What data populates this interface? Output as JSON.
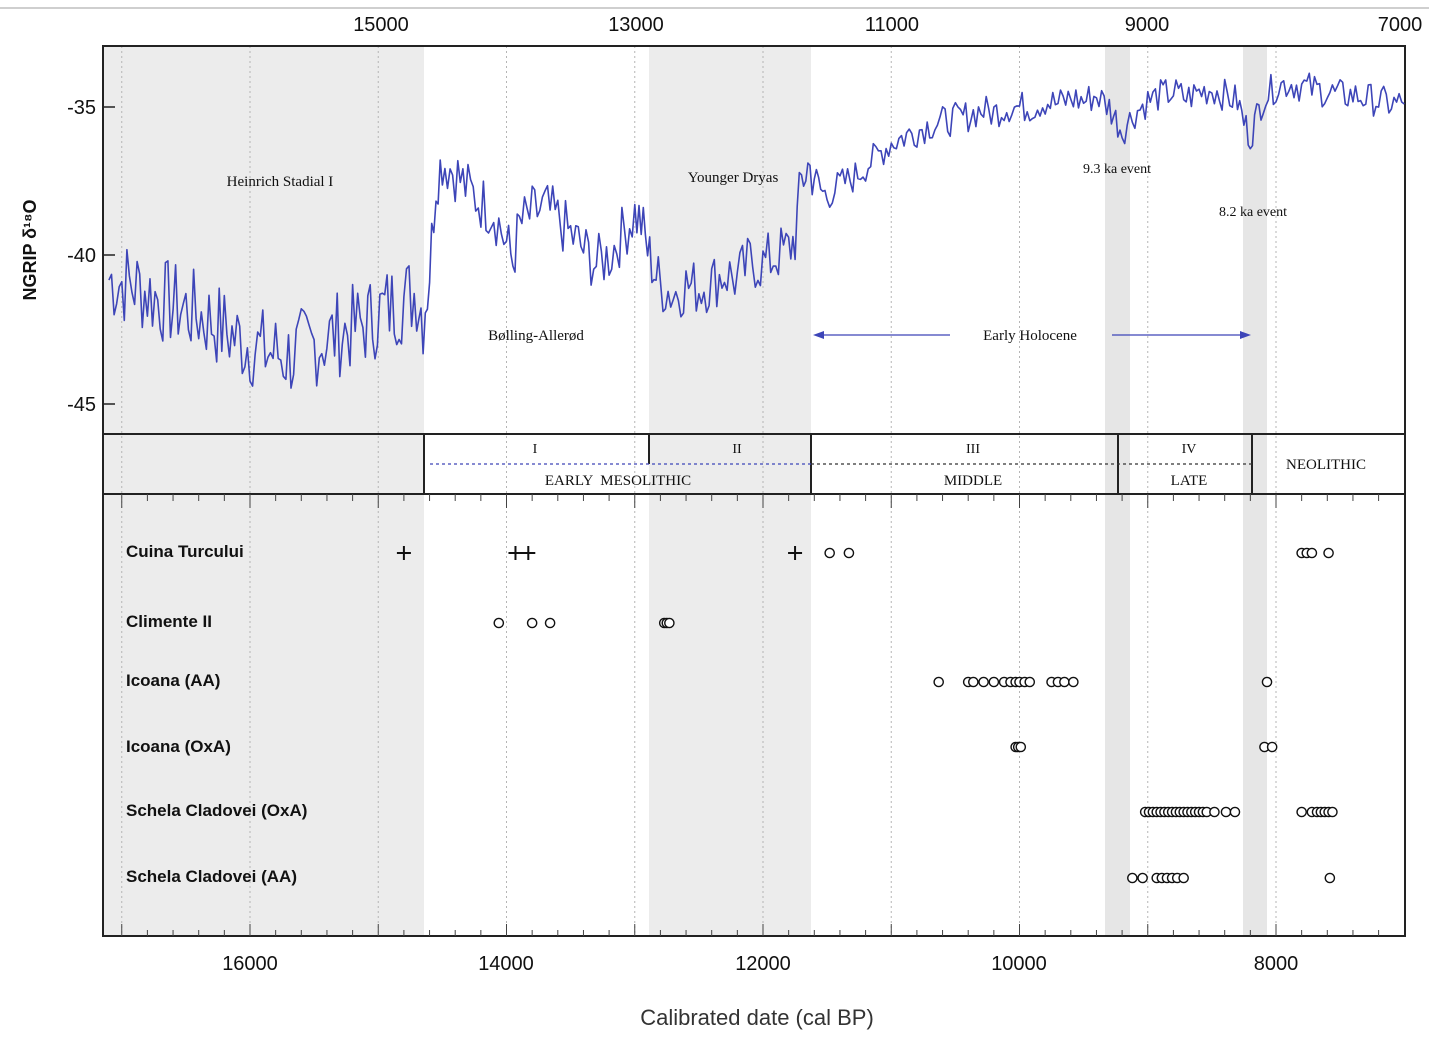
{
  "chart_data": [
    {
      "type": "line",
      "ylabel": "NGRIP δ¹⁸O",
      "y_ticks": [
        "-35",
        "-40",
        "-45"
      ],
      "ylim": [
        -46.5,
        -33.5
      ],
      "xlim": [
        17100,
        7000
      ],
      "x_reversed": true,
      "top_axis_ticks": [
        "15000",
        "13000",
        "11000",
        "9000",
        "7000"
      ],
      "series": [
        {
          "color": "#3d45b8",
          "x": [
            17100,
            16900,
            16700,
            16500,
            16300,
            16100,
            16000,
            15900,
            15700,
            15500,
            15300,
            15100,
            14950,
            14800,
            14700,
            14650,
            14600,
            14550,
            14500,
            14400,
            14300,
            14200,
            14100,
            14000,
            13950,
            13900,
            13800,
            13700,
            13600,
            13500,
            13400,
            13300,
            13200,
            13100,
            13000,
            12950,
            12900,
            12850,
            12800,
            12700,
            12600,
            12500,
            12400,
            12300,
            12200,
            12100,
            12000,
            11900,
            11800,
            11750,
            11700,
            11650,
            11600,
            11550,
            11500,
            11400,
            11300,
            11200,
            11100,
            11000,
            10900,
            10800,
            10700,
            10600,
            10500,
            10400,
            10300,
            10200,
            10100,
            10000,
            9900,
            9800,
            9700,
            9600,
            9500,
            9400,
            9300,
            9250,
            9200,
            9100,
            9000,
            8900,
            8800,
            8700,
            8600,
            8500,
            8400,
            8300,
            8250,
            8200,
            8150,
            8100,
            8000,
            7900,
            7800,
            7700,
            7600,
            7500,
            7400,
            7300,
            7200,
            7100,
            7000
          ],
          "y": [
            -40.8,
            -41.0,
            -41.5,
            -41.8,
            -42.2,
            -42.8,
            -43.0,
            -43.2,
            -43.4,
            -43.0,
            -42.6,
            -42.3,
            -41.8,
            -41.5,
            -41.2,
            -42.0,
            -40.5,
            -37.5,
            -36.8,
            -37.2,
            -37.8,
            -38.2,
            -38.5,
            -39.6,
            -40.2,
            -39.0,
            -38.6,
            -38.4,
            -38.8,
            -39.3,
            -39.8,
            -40.3,
            -40.0,
            -39.3,
            -38.6,
            -38.9,
            -39.8,
            -40.5,
            -41.0,
            -41.3,
            -41.0,
            -41.1,
            -40.9,
            -40.6,
            -40.8,
            -40.2,
            -40.3,
            -40.0,
            -39.8,
            -39.4,
            -37.5,
            -37.0,
            -37.3,
            -37.8,
            -38.0,
            -37.6,
            -37.4,
            -37.0,
            -36.6,
            -36.2,
            -36.0,
            -35.8,
            -35.6,
            -35.5,
            -35.4,
            -35.3,
            -35.1,
            -35.2,
            -35.0,
            -35.0,
            -35.0,
            -34.8,
            -34.9,
            -34.7,
            -34.8,
            -34.6,
            -35.0,
            -35.4,
            -35.8,
            -35.2,
            -34.8,
            -34.6,
            -34.5,
            -34.7,
            -34.5,
            -34.4,
            -34.6,
            -34.8,
            -35.5,
            -36.0,
            -35.3,
            -34.7,
            -34.3,
            -34.2,
            -34.3,
            -34.4,
            -34.5,
            -34.6,
            -34.6,
            -34.7,
            -34.8,
            -34.9,
            -34.9
          ]
        }
      ],
      "annotations": [
        "Heinrich Stadial I",
        "Bølling-Allerød",
        "Younger Dryas",
        "9.3 ka event",
        "8.2 ka event",
        "Early Holocene"
      ]
    },
    {
      "type": "scatter",
      "xlabel": "Calibrated date (cal BP)",
      "x_ticks": [
        "16000",
        "14000",
        "12000",
        "10000",
        "8000"
      ],
      "xlim": [
        17100,
        7000
      ],
      "x_reversed": true,
      "categories": [
        "Cuina Turcului",
        "Climente II",
        "Icoana (AA)",
        "Icoana (OxA)",
        "Schela Cladovei (OxA)",
        "Schela Cladovei (AA)"
      ],
      "series": [
        {
          "name": "Cuina Turcului",
          "marker": "+",
          "x": [
            14800,
            13930,
            13830,
            11750
          ]
        },
        {
          "name": "Cuina Turcului",
          "marker": "o",
          "x": [
            11480,
            11330,
            7800,
            7760,
            7720,
            7590
          ]
        },
        {
          "name": "Climente II",
          "marker": "o",
          "x": [
            14060,
            13800,
            13660,
            12770,
            12750,
            12730
          ]
        },
        {
          "name": "Icoana (AA)",
          "marker": "o",
          "x": [
            10630,
            10400,
            10360,
            10280,
            10200,
            10120,
            10070,
            10030,
            10000,
            9960,
            9920,
            9750,
            9700,
            9650,
            9580,
            8070
          ]
        },
        {
          "name": "Icoana (OxA)",
          "marker": "o",
          "x": [
            10030,
            10010,
            9990,
            8090,
            8030
          ]
        },
        {
          "name": "Schela Cladovei (OxA)",
          "marker": "o",
          "x": [
            9020,
            8990,
            8960,
            8930,
            8900,
            8870,
            8840,
            8810,
            8780,
            8750,
            8720,
            8690,
            8660,
            8630,
            8600,
            8570,
            8540,
            8480,
            8390,
            8320,
            7800,
            7720,
            7680,
            7650,
            7620,
            7590,
            7560
          ]
        },
        {
          "name": "Schela Cladovei (AA)",
          "marker": "o",
          "x": [
            9120,
            9040,
            8930,
            8890,
            8850,
            8810,
            8770,
            8720,
            7580
          ]
        }
      ]
    }
  ],
  "cultural_periods": {
    "phases": [
      "I",
      "II",
      "III",
      "IV"
    ],
    "periods": [
      "EARLY  MESOLITHIC",
      "MIDDLE",
      "LATE",
      "NEOLITHIC"
    ]
  }
}
